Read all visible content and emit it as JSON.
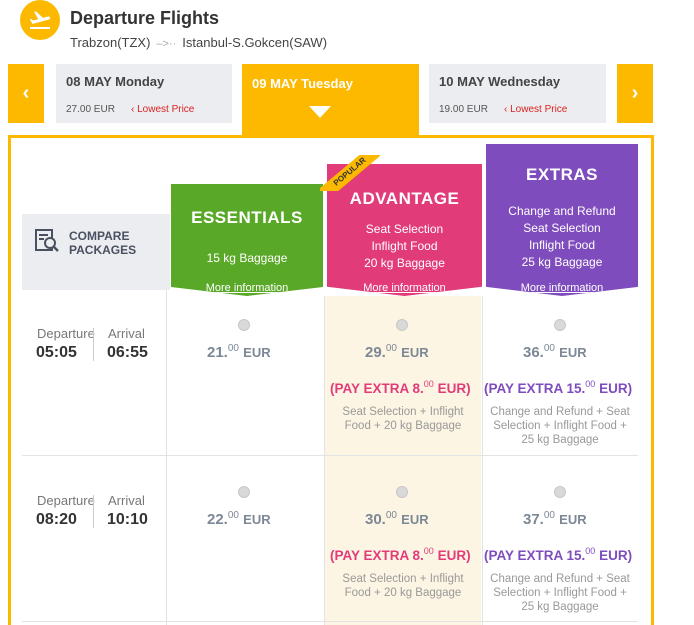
{
  "header": {
    "title": "Departure Flights",
    "origin": "Trabzon(TZX)",
    "arrow": "–>··",
    "destination": "Istanbul-S.Gokcen(SAW)"
  },
  "dates": {
    "prev": {
      "label": "08 MAY Monday",
      "price": "27.00 EUR",
      "badge": "Lowest Price"
    },
    "active": {
      "label": "09 MAY Tuesday"
    },
    "next": {
      "label": "10 MAY Wednesday",
      "price": "19.00 EUR",
      "badge": "Lowest Price"
    }
  },
  "compare": {
    "line1": "COMPARE",
    "line2": "PACKAGES"
  },
  "packages": {
    "essentials": {
      "name": "ESSENTIALS",
      "features": [
        "15 kg Baggage"
      ],
      "more": "More information",
      "color": "#5aa827"
    },
    "advantage": {
      "name": "ADVANTAGE",
      "ribbon": "POPULAR",
      "features": [
        "Seat Selection",
        "Inflight Food",
        "20 kg Baggage"
      ],
      "more": "More information",
      "color": "#e23b7a"
    },
    "extras": {
      "name": "EXTRAS",
      "features": [
        "Change and Refund",
        "Seat Selection",
        "Inflight Food",
        "25 kg Baggage"
      ],
      "more": "More information",
      "color": "#7f4cbd"
    }
  },
  "flights": [
    {
      "dep_label": "Departure",
      "arr_label": "Arrival",
      "departure": "05:05",
      "arrival": "06:55",
      "essentials": {
        "int": "21.",
        "dec": "00",
        "cur": "EUR"
      },
      "advantage": {
        "int": "29.",
        "dec": "00",
        "cur": "EUR",
        "extra_pre": "(PAY EXTRA 8.",
        "extra_dec": "00",
        "extra_post": " EUR)",
        "incl1": "Seat Selection + Inflight",
        "incl2": "Food + 20 kg Baggage"
      },
      "extras": {
        "int": "36.",
        "dec": "00",
        "cur": "EUR",
        "extra_pre": "(PAY EXTRA 15.",
        "extra_dec": "00",
        "extra_post": " EUR)",
        "incl1": "Change and Refund + Seat",
        "incl2": "Selection + Inflight Food +",
        "incl3": "25 kg Baggage"
      }
    },
    {
      "dep_label": "Departure",
      "arr_label": "Arrival",
      "departure": "08:20",
      "arrival": "10:10",
      "essentials": {
        "int": "22.",
        "dec": "00",
        "cur": "EUR"
      },
      "advantage": {
        "int": "30.",
        "dec": "00",
        "cur": "EUR",
        "extra_pre": "(PAY EXTRA 8.",
        "extra_dec": "00",
        "extra_post": " EUR)",
        "incl1": "Seat Selection + Inflight",
        "incl2": "Food + 20 kg Baggage"
      },
      "extras": {
        "int": "37.",
        "dec": "00",
        "cur": "EUR",
        "extra_pre": "(PAY EXTRA 15.",
        "extra_dec": "00",
        "extra_post": " EUR)",
        "incl1": "Change and Refund + Seat",
        "incl2": "Selection + Inflight Food +",
        "incl3": "25 kg Baggage"
      }
    }
  ],
  "colors": {
    "accent": "#fcb900",
    "muted_bg": "#ebedf0",
    "low_price": "#dd2222"
  },
  "icons": {
    "plane": "airplane-takeoff-icon",
    "compare": "compare-search-icon",
    "prev": "chevron-left-icon",
    "next": "chevron-right-icon"
  }
}
